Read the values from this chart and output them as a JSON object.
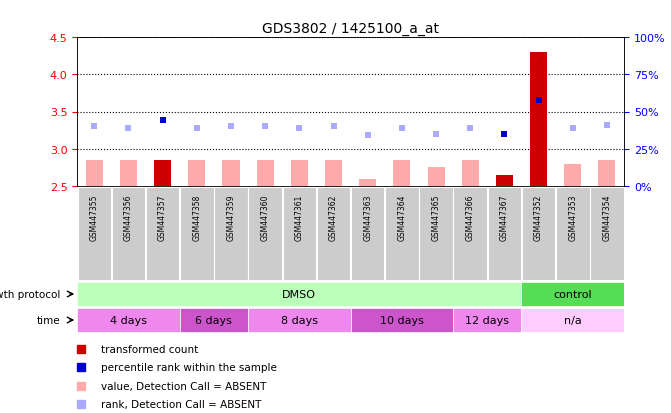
{
  "title": "GDS3802 / 1425100_a_at",
  "samples": [
    "GSM447355",
    "GSM447356",
    "GSM447357",
    "GSM447358",
    "GSM447359",
    "GSM447360",
    "GSM447361",
    "GSM447362",
    "GSM447363",
    "GSM447364",
    "GSM447365",
    "GSM447366",
    "GSM447367",
    "GSM447352",
    "GSM447353",
    "GSM447354"
  ],
  "bar_values": [
    2.85,
    2.85,
    2.85,
    2.85,
    2.85,
    2.85,
    2.85,
    2.85,
    2.6,
    2.85,
    2.75,
    2.85,
    2.65,
    4.3,
    2.8,
    2.85
  ],
  "bar_colors": [
    "#ffaaaa",
    "#ffaaaa",
    "#cc0000",
    "#ffaaaa",
    "#ffaaaa",
    "#ffaaaa",
    "#ffaaaa",
    "#ffaaaa",
    "#ffaaaa",
    "#ffaaaa",
    "#ffaaaa",
    "#ffaaaa",
    "#cc0000",
    "#cc0000",
    "#ffaaaa",
    "#ffaaaa"
  ],
  "rank_values": [
    3.3,
    3.28,
    3.38,
    3.28,
    3.3,
    3.3,
    3.28,
    3.3,
    3.18,
    3.28,
    3.2,
    3.28,
    3.2,
    3.65,
    3.28,
    3.32
  ],
  "rank_colors": [
    "#aaaaff",
    "#aaaaff",
    "#0000cc",
    "#aaaaff",
    "#aaaaff",
    "#aaaaff",
    "#aaaaff",
    "#aaaaff",
    "#aaaaff",
    "#aaaaff",
    "#aaaaff",
    "#aaaaff",
    "#0000cc",
    "#0000cc",
    "#aaaaff",
    "#aaaaff"
  ],
  "ylim_left": [
    2.5,
    4.5
  ],
  "ylim_right": [
    0,
    100
  ],
  "yticks_left": [
    2.5,
    3.0,
    3.5,
    4.0,
    4.5
  ],
  "yticks_right": [
    0,
    25,
    50,
    75,
    100
  ],
  "ytick_labels_right": [
    "0%",
    "25%",
    "50%",
    "75%",
    "100%"
  ],
  "groups_protocol": [
    {
      "label": "DMSO",
      "start": 0,
      "end": 13,
      "color": "#bbffbb"
    },
    {
      "label": "control",
      "start": 13,
      "end": 16,
      "color": "#55dd55"
    }
  ],
  "groups_time": [
    {
      "label": "4 days",
      "start": 0,
      "end": 3,
      "color": "#ee88ee"
    },
    {
      "label": "6 days",
      "start": 3,
      "end": 5,
      "color": "#cc55cc"
    },
    {
      "label": "8 days",
      "start": 5,
      "end": 8,
      "color": "#ee88ee"
    },
    {
      "label": "10 days",
      "start": 8,
      "end": 11,
      "color": "#cc55cc"
    },
    {
      "label": "12 days",
      "start": 11,
      "end": 13,
      "color": "#ee88ee"
    },
    {
      "label": "n/a",
      "start": 13,
      "end": 16,
      "color": "#ffccff"
    }
  ],
  "legend_items": [
    {
      "label": "transformed count",
      "color": "#cc0000"
    },
    {
      "label": "percentile rank within the sample",
      "color": "#0000cc"
    },
    {
      "label": "value, Detection Call = ABSENT",
      "color": "#ffaaaa"
    },
    {
      "label": "rank, Detection Call = ABSENT",
      "color": "#aaaaff"
    }
  ],
  "bar_bottom": 2.5,
  "bar_width": 0.5,
  "rank_marker_size": 5
}
